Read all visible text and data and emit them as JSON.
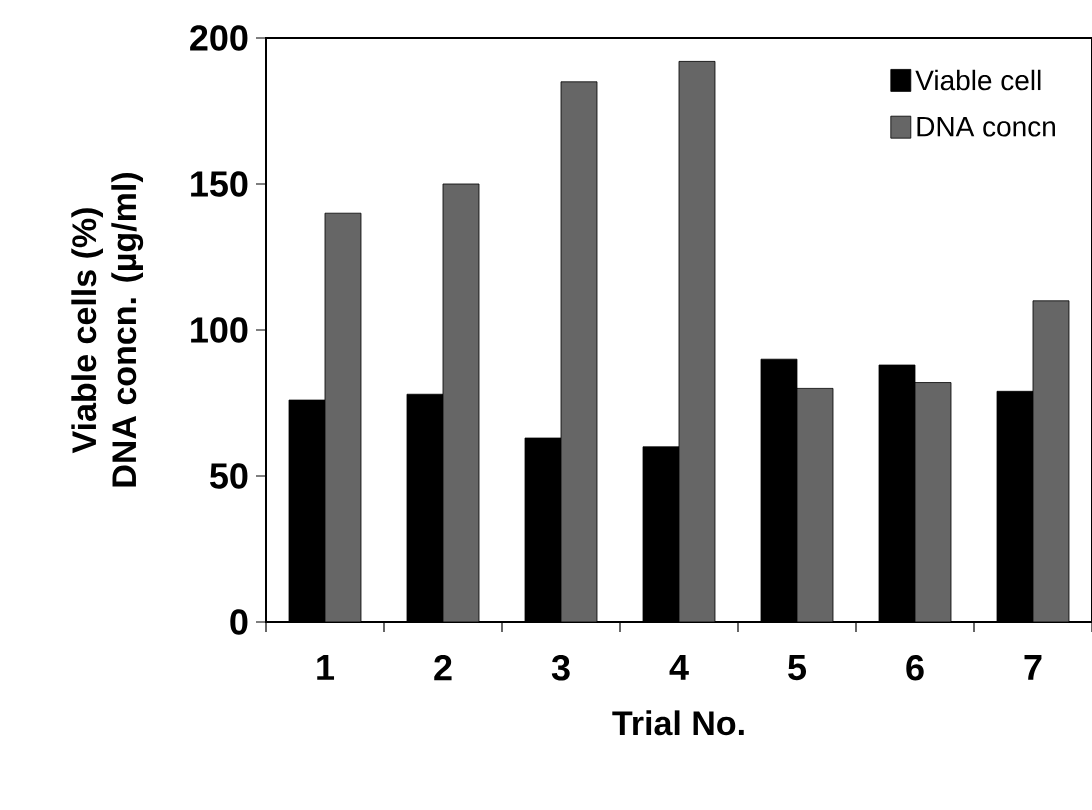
{
  "chart_data": {
    "type": "bar",
    "xlabel": "Trial No.",
    "ylabel": [
      "Viable cells (%)",
      "DNA concn. (µg/ml)"
    ],
    "categories": [
      "1",
      "2",
      "3",
      "4",
      "5",
      "6",
      "7"
    ],
    "series": [
      {
        "name": "Viable cell",
        "color": "#000000",
        "values": [
          76,
          78,
          63,
          60,
          90,
          88,
          79
        ]
      },
      {
        "name": "DNA concn",
        "color": "#666666",
        "values": [
          140,
          150,
          185,
          192,
          80,
          82,
          110
        ]
      }
    ],
    "ylim": [
      0,
      200
    ],
    "yticks": [
      0,
      50,
      100,
      150,
      200
    ],
    "grid": false,
    "legend": "top right"
  }
}
